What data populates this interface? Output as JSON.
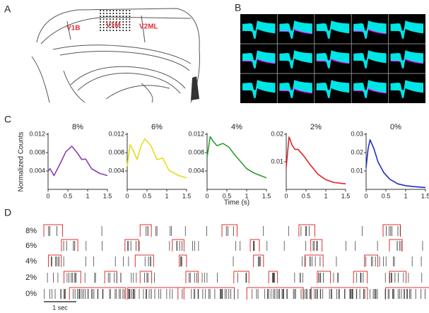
{
  "panel_labels": [
    "A",
    "B",
    "C",
    "D"
  ],
  "brain_map": {
    "regions": [
      "V1B",
      "V1M",
      "V2ML"
    ]
  },
  "raster": {
    "rows": [
      "8%",
      "6%",
      "4%",
      "2%",
      "0%"
    ],
    "scale_label": "1 sec"
  },
  "chart_data": [
    {
      "type": "line",
      "title": "8%",
      "ylabel": "Normalized Counts",
      "color": "#8b3fb0",
      "x": [
        0,
        0.05,
        0.15,
        0.3,
        0.45,
        0.6,
        0.75,
        0.85,
        0.95,
        1.1,
        1.3,
        1.5
      ],
      "values": [
        0.004,
        0.0045,
        0.003,
        0.0055,
        0.0082,
        0.0094,
        0.0078,
        0.0065,
        0.0066,
        0.0045,
        0.0035,
        0.003
      ],
      "xlim": [
        0,
        1.5
      ],
      "xticks": [
        0,
        0.5,
        1,
        1.5
      ],
      "ylim": [
        0,
        0.012
      ],
      "yticks": [
        0.004,
        0.008,
        0.012
      ]
    },
    {
      "type": "line",
      "title": "6%",
      "color": "#e6dc1e",
      "x": [
        0,
        0.07,
        0.15,
        0.25,
        0.35,
        0.45,
        0.6,
        0.75,
        0.9,
        1.05,
        1.3,
        1.5
      ],
      "values": [
        0.005,
        0.0097,
        0.0085,
        0.0065,
        0.0095,
        0.011,
        0.0095,
        0.0065,
        0.0068,
        0.0042,
        0.003,
        0.0025
      ],
      "xlim": [
        0,
        1.5
      ],
      "xticks": [
        0,
        0.5,
        1,
        1.5
      ],
      "ylim": [
        0,
        0.012
      ],
      "yticks": [
        0.004,
        0.008,
        0.012
      ]
    },
    {
      "type": "line",
      "title": "4%",
      "xlabel": "Time (s)",
      "color": "#2ca02c",
      "x": [
        0,
        0.08,
        0.15,
        0.25,
        0.4,
        0.55,
        0.7,
        0.85,
        1.0,
        1.2,
        1.5
      ],
      "values": [
        0.007,
        0.0115,
        0.0105,
        0.0095,
        0.01,
        0.0092,
        0.0075,
        0.006,
        0.0045,
        0.0035,
        0.0025
      ],
      "xlim": [
        0,
        1.5
      ],
      "xticks": [
        0,
        0.5,
        1,
        1.5
      ],
      "ylim": [
        0,
        0.012
      ],
      "yticks": [
        0.004,
        0.008,
        0.012
      ]
    },
    {
      "type": "line",
      "title": "2%",
      "color": "#e0202a",
      "x": [
        0,
        0.07,
        0.15,
        0.22,
        0.3,
        0.45,
        0.6,
        0.8,
        1.0,
        1.2,
        1.5
      ],
      "values": [
        0.008,
        0.019,
        0.016,
        0.0145,
        0.0145,
        0.012,
        0.009,
        0.0055,
        0.0035,
        0.0025,
        0.002
      ],
      "xlim": [
        0,
        1.5
      ],
      "xticks": [
        0,
        0.5,
        1,
        1.5
      ],
      "ylim": [
        0,
        0.02
      ],
      "yticks": [
        0.01,
        0.02
      ]
    },
    {
      "type": "line",
      "title": "0%",
      "color": "#1f2fc0",
      "x": [
        0,
        0.05,
        0.1,
        0.2,
        0.3,
        0.45,
        0.6,
        0.8,
        1.0,
        1.2,
        1.5
      ],
      "values": [
        0.012,
        0.022,
        0.027,
        0.022,
        0.015,
        0.009,
        0.0055,
        0.003,
        0.002,
        0.0015,
        0.001
      ],
      "xlim": [
        0,
        1.5
      ],
      "xticks": [
        0,
        0.5,
        1,
        1.5
      ],
      "ylim": [
        0,
        0.03
      ],
      "yticks": [
        0.01,
        0.02,
        0.03
      ]
    }
  ]
}
